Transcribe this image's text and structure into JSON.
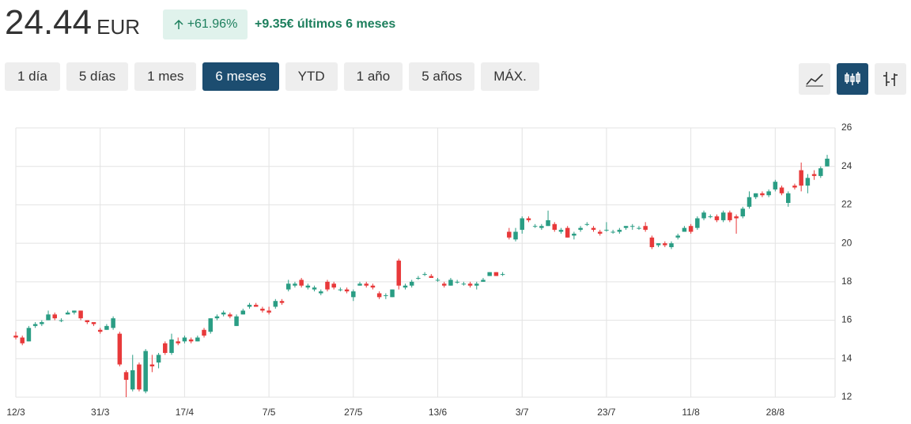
{
  "header": {
    "price": "24.44",
    "currency": "EUR",
    "change_pct": "+61.96%",
    "change_abs": "+9.35€ últimos 6 meses"
  },
  "range_buttons": [
    "1 día",
    "5 días",
    "1 mes",
    "6 meses",
    "YTD",
    "1 año",
    "5 años",
    "MÁX."
  ],
  "active_range": 3,
  "chart_data": {
    "type": "candlestick",
    "up_color": "#2a9d84",
    "down_color": "#e8393a",
    "grid": true,
    "categories": [
      "12/3",
      null,
      null,
      null,
      null,
      null,
      null,
      null,
      null,
      null,
      null,
      null,
      null,
      "31/3",
      null,
      null,
      null,
      null,
      null,
      null,
      null,
      null,
      null,
      null,
      null,
      null,
      "17/4",
      null,
      null,
      null,
      null,
      null,
      null,
      null,
      null,
      null,
      null,
      null,
      null,
      "7/5",
      null,
      null,
      null,
      null,
      null,
      null,
      null,
      null,
      null,
      null,
      null,
      null,
      "27/5",
      null,
      null,
      null,
      null,
      null,
      null,
      null,
      null,
      null,
      null,
      null,
      null,
      "13/6",
      null,
      null,
      null,
      null,
      null,
      null,
      null,
      null,
      null,
      null,
      null,
      null,
      "3/7",
      null,
      null,
      null,
      null,
      null,
      null,
      null,
      null,
      null,
      null,
      null,
      null,
      "23/7",
      null,
      null,
      null,
      null,
      null,
      null,
      null,
      null,
      null,
      null,
      null,
      null,
      "11/8",
      null,
      null,
      null,
      null,
      null,
      null,
      null,
      null,
      null,
      null,
      null,
      null,
      "28/8",
      null,
      null,
      null,
      null,
      null,
      null,
      null,
      null
    ],
    "open": [
      15.2,
      15.1,
      14.9,
      15.7,
      15.8,
      16.0,
      16.3,
      16.0,
      16.3,
      16.4,
      16.5,
      16.0,
      15.9,
      15.5,
      15.5,
      15.6,
      15.3,
      13.3,
      12.4,
      13.7,
      12.3,
      13.7,
      13.8,
      14.8,
      14.3,
      14.9,
      14.9,
      15.0,
      14.9,
      15.5,
      15.4,
      16.1,
      16.3,
      16.3,
      15.7,
      16.3,
      16.7,
      16.8,
      16.6,
      16.5,
      16.7,
      17.0,
      17.6,
      17.8,
      18.1,
      17.7,
      17.6,
      17.4,
      18.0,
      17.9,
      17.6,
      17.6,
      17.2,
      17.8,
      17.9,
      17.8,
      17.4,
      17.3,
      17.2,
      19.1,
      17.7,
      17.8,
      18.2,
      18.4,
      18.3,
      18.1,
      17.9,
      17.8,
      18.0,
      17.9,
      17.9,
      17.8,
      18.0,
      18.3,
      18.5,
      18.4,
      20.6,
      20.2,
      20.7,
      21.3,
      20.9,
      20.8,
      20.9,
      21.0,
      20.6,
      20.8,
      20.4,
      20.7,
      21.0,
      20.8,
      20.6,
      20.7,
      20.6,
      20.6,
      20.8,
      20.9,
      20.8,
      20.9,
      20.3,
      19.9,
      20.0,
      19.8,
      20.3,
      20.6,
      20.9,
      20.8,
      21.3,
      21.4,
      21.4,
      21.2,
      21.6,
      21.4,
      21.4,
      21.9,
      22.4,
      22.6,
      22.5,
      22.8,
      22.9,
      22.1,
      23.0,
      23.8,
      23.0,
      23.6,
      23.5,
      24.0
    ],
    "high": [
      15.4,
      15.2,
      15.7,
      15.9,
      16.0,
      16.5,
      16.4,
      16.1,
      16.5,
      16.5,
      16.5,
      16.0,
      15.9,
      15.6,
      15.8,
      16.2,
      15.4,
      13.4,
      14.2,
      13.8,
      14.5,
      14.2,
      14.3,
      14.9,
      15.3,
      15.1,
      15.2,
      15.1,
      15.2,
      15.6,
      16.1,
      16.3,
      16.5,
      16.4,
      16.3,
      16.6,
      16.9,
      16.9,
      16.7,
      16.7,
      17.1,
      17.1,
      18.1,
      18.0,
      18.2,
      17.9,
      17.8,
      17.6,
      18.1,
      18.0,
      17.7,
      17.7,
      17.6,
      18.0,
      18.0,
      17.9,
      17.5,
      17.4,
      17.6,
      19.2,
      17.9,
      18.1,
      18.3,
      18.5,
      18.4,
      18.2,
      18.0,
      18.2,
      18.1,
      18.0,
      18.0,
      18.0,
      18.2,
      18.5,
      18.5,
      18.5,
      20.8,
      20.8,
      21.4,
      21.4,
      21.0,
      21.0,
      21.7,
      21.1,
      20.8,
      20.9,
      20.6,
      20.9,
      21.1,
      20.9,
      20.7,
      21.1,
      20.7,
      20.8,
      20.9,
      21.0,
      20.9,
      21.1,
      20.4,
      20.0,
      20.1,
      20.1,
      20.5,
      20.9,
      21.0,
      21.4,
      21.7,
      21.5,
      21.5,
      21.7,
      21.7,
      21.5,
      21.9,
      22.7,
      22.6,
      22.7,
      22.8,
      23.3,
      23.0,
      22.7,
      23.1,
      24.2,
      23.6,
      23.8,
      24.0,
      24.6
    ],
    "low": [
      15.0,
      14.7,
      14.9,
      15.6,
      15.7,
      16.0,
      16.0,
      15.9,
      16.3,
      16.3,
      16.0,
      15.8,
      15.7,
      15.3,
      15.5,
      15.5,
      13.6,
      12.0,
      12.3,
      12.3,
      12.2,
      13.3,
      13.5,
      14.2,
      14.2,
      14.7,
      14.8,
      14.8,
      14.9,
      15.1,
      15.3,
      16.0,
      16.2,
      16.1,
      15.7,
      16.3,
      16.6,
      16.7,
      16.4,
      16.3,
      16.6,
      16.8,
      17.5,
      17.7,
      17.7,
      17.6,
      17.5,
      17.3,
      17.5,
      17.6,
      17.5,
      17.4,
      17.0,
      17.8,
      17.7,
      17.6,
      17.1,
      17.1,
      17.2,
      17.6,
      17.6,
      17.7,
      18.1,
      18.3,
      18.2,
      18.0,
      17.7,
      17.8,
      17.9,
      17.8,
      17.7,
      17.6,
      18.0,
      18.3,
      18.3,
      18.3,
      20.2,
      20.1,
      20.5,
      21.1,
      20.8,
      20.7,
      20.9,
      20.6,
      20.5,
      20.3,
      20.2,
      20.6,
      20.9,
      20.6,
      20.4,
      20.6,
      20.5,
      20.5,
      20.7,
      20.7,
      20.7,
      20.6,
      19.7,
      19.8,
      19.8,
      19.7,
      20.2,
      20.6,
      20.5,
      20.7,
      21.2,
      21.3,
      21.1,
      21.1,
      21.1,
      20.5,
      21.3,
      21.8,
      22.3,
      22.4,
      22.4,
      22.7,
      22.5,
      21.9,
      22.8,
      22.7,
      22.6,
      23.3,
      23.4,
      24.0
    ],
    "close": [
      15.1,
      14.8,
      15.6,
      15.8,
      15.9,
      16.3,
      16.1,
      16.0,
      16.4,
      16.5,
      16.1,
      15.9,
      15.8,
      15.4,
      15.7,
      16.1,
      13.7,
      12.9,
      13.4,
      12.4,
      14.4,
      13.6,
      14.2,
      14.3,
      15.0,
      14.8,
      15.1,
      14.9,
      15.1,
      15.2,
      16.1,
      16.2,
      16.4,
      16.2,
      16.2,
      16.5,
      16.8,
      16.7,
      16.5,
      16.4,
      17.0,
      16.9,
      17.9,
      17.9,
      17.8,
      17.8,
      17.7,
      17.5,
      17.6,
      17.7,
      17.6,
      17.5,
      17.5,
      17.9,
      17.8,
      17.7,
      17.2,
      17.3,
      17.6,
      17.8,
      17.8,
      18.0,
      18.2,
      18.4,
      18.2,
      18.1,
      17.8,
      18.1,
      18.0,
      17.9,
      17.8,
      17.9,
      18.1,
      18.5,
      18.3,
      18.4,
      20.3,
      20.6,
      21.3,
      21.2,
      20.9,
      20.9,
      21.2,
      20.7,
      20.7,
      20.3,
      20.5,
      20.8,
      21.0,
      20.7,
      20.5,
      20.7,
      20.6,
      20.7,
      20.9,
      20.9,
      20.8,
      20.7,
      19.8,
      20.0,
      19.9,
      20.0,
      20.4,
      20.8,
      20.6,
      21.3,
      21.6,
      21.4,
      21.2,
      21.6,
      21.2,
      21.3,
      21.8,
      22.4,
      22.6,
      22.5,
      22.7,
      23.2,
      22.6,
      22.6,
      22.9,
      23.0,
      23.4,
      23.5,
      23.9,
      24.4
    ],
    "ylim": [
      12,
      26
    ],
    "yticks": [
      12,
      14,
      16,
      18,
      20,
      22,
      24,
      26
    ]
  }
}
